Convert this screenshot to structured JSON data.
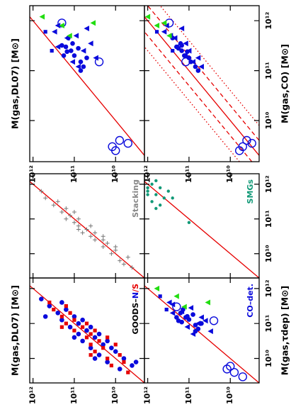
{
  "chart_data": [
    {
      "type": "scatter",
      "xscale": "log",
      "yscale": "log",
      "xlim": [
        1500000000.0,
        2000000000000.0
      ],
      "ylim": [
        2000000000.0,
        1200000000000.0
      ],
      "xticks": [
        10000000000.0,
        100000000000.0,
        1000000000000.0
      ],
      "yticks": [
        {
          "value": 10000000000.0,
          "label": "10¹⁰"
        },
        {
          "value": 100000000000.0,
          "label": "10¹¹"
        },
        {
          "value": 1000000000000.0,
          "label": "10¹²"
        }
      ],
      "ylabel": "M(gas,DL07) [M⊙]",
      "reference_lines": [
        {
          "factor": 1,
          "style": "solid",
          "color": "#e60000"
        }
      ],
      "series": [
        {
          "marker": "circle",
          "color": "#0a0adc",
          "x": [
            200000000000.0,
            250000000000.0,
            150000000000.0,
            300000000000.0,
            350000000000.0,
            200000000000.0,
            280000000000.0,
            120000000000.0,
            450000000000.0,
            180000000000.0,
            100000000000.0,
            320000000000.0,
            240000000000.0
          ],
          "y": [
            100000000000.0,
            120000000000.0,
            70000000000.0,
            160000000000.0,
            110000000000.0,
            180000000000.0,
            80000000000.0,
            60000000000.0,
            140000000000.0,
            50000000000.0,
            70000000000.0,
            200000000000.0,
            150000000000.0
          ]
        },
        {
          "marker": "triangle",
          "color": "#0a0adc",
          "x": [
            300000000000.0,
            600000000000.0,
            450000000000.0,
            250000000000.0,
            150000000000.0,
            800000000000.0,
            700000000000.0,
            180000000000.0,
            350000000000.0,
            120000000000.0,
            500000000000.0
          ],
          "y": [
            250000000000.0,
            300000000000.0,
            150000000000.0,
            60000000000.0,
            110000000000.0,
            250000000000.0,
            50000000000.0,
            30000000000.0,
            40000000000.0,
            80000000000.0,
            90000000000.0
          ]
        },
        {
          "marker": "circle-open",
          "color": "#0a0adc",
          "x": [
            900000000000.0,
            150000000000.0,
            3000000000.0,
            4000000000.0,
            2500000000.0,
            3500000000.0
          ],
          "y": [
            200000000000.0,
            25000000000.0,
            12000000000.0,
            8000000000.0,
            10000000000.0,
            5000000000.0
          ]
        },
        {
          "marker": "triangle",
          "color": "#22dd11",
          "x": [
            1200000000000.0,
            800000000000.0,
            500000000000.0,
            900000000000.0
          ],
          "y": [
            600000000000.0,
            200000000000.0,
            130000000000.0,
            35000000000.0
          ]
        },
        {
          "marker": "square",
          "color": "#0a0adc",
          "x": [
            600000000000.0,
            250000000000.0
          ],
          "y": [
            500000000000.0,
            350000000000.0
          ]
        }
      ]
    },
    {
      "type": "scatter",
      "xscale": "log",
      "yscale": "log",
      "xlim": [
        1500000000.0,
        2000000000000.0
      ],
      "ylim": [
        2000000000.0,
        1200000000000.0
      ],
      "xticks": [
        {
          "value": 10000000000.0,
          "label": "10¹⁰"
        },
        {
          "value": 100000000000.0,
          "label": "10¹¹"
        },
        {
          "value": 1000000000000.0,
          "label": "10¹²"
        }
      ],
      "yticks": [
        {
          "value": 10000000000.0,
          "label": "10¹⁰"
        },
        {
          "value": 100000000000.0,
          "label": "10¹¹"
        },
        {
          "value": 1000000000000.0,
          "label": "10¹²"
        }
      ],
      "xlabel": "M(gas,CO) [M⊙]",
      "reference_lines": [
        {
          "factor": 1,
          "style": "solid",
          "color": "#e60000"
        },
        {
          "factor": 2,
          "style": "dashed",
          "color": "#e60000"
        },
        {
          "factor": 0.5,
          "style": "dashed",
          "color": "#e60000"
        },
        {
          "factor": 4,
          "style": "dotted",
          "color": "#e60000"
        },
        {
          "factor": 0.25,
          "style": "dotted",
          "color": "#e60000"
        }
      ],
      "series": [
        {
          "marker": "circle",
          "color": "#0a0adc",
          "x": [
            200000000000.0,
            250000000000.0,
            150000000000.0,
            300000000000.0,
            350000000000.0,
            200000000000.0,
            280000000000.0,
            120000000000.0,
            450000000000.0,
            180000000000.0,
            100000000000.0,
            320000000000.0,
            240000000000.0
          ],
          "y": [
            130000000000.0,
            150000000000.0,
            90000000000.0,
            200000000000.0,
            160000000000.0,
            120000000000.0,
            180000000000.0,
            70000000000.0,
            250000000000.0,
            100000000000.0,
            60000000000.0,
            150000000000.0,
            110000000000.0
          ]
        },
        {
          "marker": "triangle",
          "color": "#0a0adc",
          "x": [
            300000000000.0,
            600000000000.0,
            450000000000.0,
            250000000000.0,
            150000000000.0,
            800000000000.0,
            700000000000.0,
            180000000000.0,
            350000000000.0,
            120000000000.0,
            500000000000.0
          ],
          "y": [
            200000000000.0,
            400000000000.0,
            220000000000.0,
            100000000000.0,
            80000000000.0,
            350000000000.0,
            150000000000.0,
            60000000000.0,
            120000000000.0,
            50000000000.0,
            280000000000.0
          ]
        },
        {
          "marker": "circle-open",
          "color": "#0a0adc",
          "x": [
            900000000000.0,
            150000000000.0,
            3000000000.0,
            4000000000.0,
            2500000000.0,
            3500000000.0
          ],
          "y": [
            300000000000.0,
            120000000000.0,
            5000000000.0,
            4000000000.0,
            6000000000.0,
            3000000000.0
          ]
        },
        {
          "marker": "triangle",
          "color": "#22dd11",
          "x": [
            1200000000000.0,
            800000000000.0,
            500000000000.0,
            900000000000.0
          ],
          "y": [
            1000000000000.0,
            600000000000.0,
            300000000000.0,
            400000000000.0
          ]
        },
        {
          "marker": "square",
          "color": "#0a0adc",
          "x": [
            600000000000.0,
            250000000000.0
          ],
          "y": [
            600000000000.0,
            250000000000.0
          ]
        }
      ]
    },
    {
      "type": "scatter",
      "xscale": "log",
      "yscale": "log",
      "xlim": [
        2000000000.0,
        2000000000000.0
      ],
      "ylim": [
        2000000000.0,
        1200000000000.0
      ],
      "xticks": [
        10000000000.0,
        100000000000.0,
        1000000000000.0
      ],
      "yticks": [
        10000000000.0,
        100000000000.0,
        1000000000000.0
      ],
      "annotation": [
        {
          "text": "Stacking",
          "color": "#888888"
        }
      ],
      "reference_lines": [
        {
          "factor": 1,
          "style": "solid",
          "color": "#e60000"
        }
      ],
      "series": [
        {
          "marker": "plus",
          "color": "#777777",
          "x": [
            4000000000.0,
            6300000000.0,
            7900000000.0,
            10000000000.0,
            12600000000.0,
            15800000000.0,
            20000000000.0,
            25000000000.0,
            25000000000.0,
            31600000000.0,
            40000000000.0,
            40000000000.0,
            50000000000.0,
            63000000000.0,
            63000000000.0,
            79000000000.0,
            100000000000.0,
            100000000000.0,
            126000000000.0,
            158000000000.0,
            200000000000.0,
            250000000000.0,
            316000000000.0,
            400000000000.0,
            630000000000.0,
            15800000000.0,
            31600000000.0,
            50000000000.0,
            158000000000.0,
            5000000000.0
          ],
          "y": [
            4000000000.0,
            7900000000.0,
            5000000000.0,
            12600000000.0,
            10000000000.0,
            20000000000.0,
            15800000000.0,
            31600000000.0,
            20000000000.0,
            40000000000.0,
            31600000000.0,
            63000000000.0,
            50000000000.0,
            79000000000.0,
            40000000000.0,
            100000000000.0,
            79000000000.0,
            158000000000.0,
            126000000000.0,
            200000000000.0,
            158000000000.0,
            316000000000.0,
            250000000000.0,
            500000000000.0,
            630000000000.0,
            10000000000.0,
            20000000000.0,
            79000000000.0,
            100000000000.0,
            6300000000.0
          ]
        }
      ]
    },
    {
      "type": "scatter",
      "xscale": "log",
      "yscale": "log",
      "xlim": [
        2000000000.0,
        2000000000000.0
      ],
      "ylim": [
        2000000000.0,
        1200000000000.0
      ],
      "xticks": [
        {
          "value": 10000000000.0,
          "label": "10¹⁰"
        },
        {
          "value": 100000000000.0,
          "label": "10¹¹"
        },
        {
          "value": 1000000000000.0,
          "label": "10¹²"
        }
      ],
      "yticks": [
        10000000000.0,
        100000000000.0,
        1000000000000.0
      ],
      "annotation": [
        {
          "text": "SMGs",
          "color": "#119977"
        }
      ],
      "reference_lines": [
        {
          "factor": 1,
          "style": "solid",
          "color": "#e60000"
        }
      ],
      "series": [
        {
          "marker": "dot",
          "color": "#119977",
          "x": [
            1000000000000.0,
            790000000000.0,
            630000000000.0,
            500000000000.0,
            400000000000.0,
            790000000000.0,
            316000000000.0,
            630000000000.0,
            250000000000.0,
            500000000000.0,
            1260000000000.0,
            200000000000.0,
            79000000000.0,
            400000000000.0
          ],
          "y": [
            790000000000.0,
            500000000000.0,
            1000000000000.0,
            630000000000.0,
            400000000000.0,
            1000000000000.0,
            790000000000.0,
            316000000000.0,
            500000000000.0,
            1000000000000.0,
            630000000000.0,
            630000000000.0,
            100000000000.0,
            250000000000.0
          ]
        }
      ]
    },
    {
      "type": "scatter",
      "xscale": "log",
      "yscale": "log",
      "xlim": [
        2000000000.0,
        2000000000000.0
      ],
      "ylim": [
        2000000000.0,
        1200000000000.0
      ],
      "xticks": [
        10000000000.0,
        100000000000.0,
        1000000000000.0
      ],
      "yticks": [
        {
          "value": 10000000000.0,
          "label": "10¹⁰"
        },
        {
          "value": 100000000000.0,
          "label": "10¹¹"
        },
        {
          "value": 1000000000000.0,
          "label": "10¹²"
        }
      ],
      "ylabel": "M(gas,DL07) [M⊙]",
      "annotation": [
        {
          "text": "GOODS–",
          "color": "#000000"
        },
        {
          "text": "N",
          "color": "#0a0adc"
        },
        {
          "text": "/S",
          "color": "#e60000"
        }
      ],
      "reference_lines": [
        {
          "factor": 1,
          "style": "solid",
          "color": "#e60000"
        }
      ],
      "series": [
        {
          "marker": "circle",
          "color": "#0a0adc",
          "x": [
            5000000000.0,
            6300000000.0,
            7900000000.0,
            10000000000.0,
            12600000000.0,
            15800000000.0,
            20000000000.0,
            20000000000.0,
            25000000000.0,
            31600000000.0,
            31600000000.0,
            40000000000.0,
            50000000000.0,
            50000000000.0,
            63000000000.0,
            79000000000.0,
            79000000000.0,
            100000000000.0,
            126000000000.0,
            126000000000.0,
            158000000000.0,
            200000000000.0,
            250000000000.0,
            316000000000.0,
            400000000000.0,
            500000000000.0,
            10000000000.0,
            40000000000.0,
            158000000000.0,
            7900000000.0
          ],
          "y": [
            7900000000.0,
            4000000000.0,
            15800000000.0,
            6300000000.0,
            25000000000.0,
            10000000000.0,
            40000000000.0,
            12600000000.0,
            20000000000.0,
            63000000000.0,
            15800000000.0,
            31600000000.0,
            79000000000.0,
            25000000000.0,
            50000000000.0,
            126000000000.0,
            40000000000.0,
            79000000000.0,
            200000000000.0,
            63000000000.0,
            100000000000.0,
            250000000000.0,
            158000000000.0,
            400000000000.0,
            200000000000.0,
            630000000000.0,
            31600000000.0,
            100000000000.0,
            500000000000.0,
            3200000000.0
          ]
        },
        {
          "marker": "square",
          "color": "#e60000",
          "x": [
            4000000000.0,
            6300000000.0,
            7900000000.0,
            10000000000.0,
            12600000000.0,
            15800000000.0,
            20000000000.0,
            25000000000.0,
            25000000000.0,
            31600000000.0,
            40000000000.0,
            40000000000.0,
            50000000000.0,
            63000000000.0,
            63000000000.0,
            79000000000.0,
            100000000000.0,
            100000000000.0,
            126000000000.0,
            158000000000.0,
            200000000000.0,
            250000000000.0,
            316000000000.0,
            12600000000.0,
            79000000000.0,
            400000000000.0
          ],
          "y": [
            5000000000.0,
            12600000000.0,
            6300000000.0,
            15800000000.0,
            7900000000.0,
            31600000000.0,
            20000000000.0,
            10000000000.0,
            40000000000.0,
            25000000000.0,
            50000000000.0,
            15800000000.0,
            40000000000.0,
            100000000000.0,
            31600000000.0,
            63000000000.0,
            158000000000.0,
            50000000000.0,
            100000000000.0,
            200000000000.0,
            126000000000.0,
            316000000000.0,
            158000000000.0,
            40000000000.0,
            200000000000.0,
            400000000000.0
          ]
        }
      ]
    },
    {
      "type": "scatter",
      "xscale": "log",
      "yscale": "log",
      "xlim": [
        2000000000.0,
        2000000000000.0
      ],
      "ylim": [
        2000000000.0,
        1200000000000.0
      ],
      "xticks": [
        {
          "value": 10000000000.0,
          "label": "10¹⁰"
        },
        {
          "value": 100000000000.0,
          "label": "10¹¹"
        },
        {
          "value": 1000000000000.0,
          "label": "10¹²"
        }
      ],
      "yticks": [
        {
          "value": 10000000000.0,
          "label": "10¹⁰"
        },
        {
          "value": 100000000000.0,
          "label": "10¹¹"
        },
        {
          "value": 1000000000000.0,
          "label": "10¹²"
        }
      ],
      "xlabel": "M(gas,τdep) [M⊙]",
      "annotation": [
        {
          "text": "CO–det.",
          "color": "#0a0adc"
        }
      ],
      "reference_lines": [
        {
          "factor": 1,
          "style": "solid",
          "color": "#e60000"
        }
      ],
      "series": [
        {
          "marker": "circle",
          "color": "#0a0adc",
          "x": [
            130000000000.0,
            150000000000.0,
            90000000000.0,
            200000000000.0,
            160000000000.0,
            120000000000.0,
            180000000000.0,
            70000000000.0,
            250000000000.0,
            100000000000.0,
            60000000000.0,
            150000000000.0,
            110000000000.0
          ],
          "y": [
            100000000000.0,
            120000000000.0,
            70000000000.0,
            160000000000.0,
            110000000000.0,
            180000000000.0,
            80000000000.0,
            60000000000.0,
            140000000000.0,
            50000000000.0,
            70000000000.0,
            200000000000.0,
            150000000000.0
          ]
        },
        {
          "marker": "triangle",
          "color": "#0a0adc",
          "x": [
            200000000000.0,
            400000000000.0,
            220000000000.0,
            100000000000.0,
            80000000000.0,
            350000000000.0,
            150000000000.0,
            60000000000.0,
            120000000000.0,
            50000000000.0,
            280000000000.0
          ],
          "y": [
            250000000000.0,
            300000000000.0,
            150000000000.0,
            60000000000.0,
            110000000000.0,
            250000000000.0,
            50000000000.0,
            30000000000.0,
            40000000000.0,
            80000000000.0,
            90000000000.0
          ]
        },
        {
          "marker": "circle-open",
          "color": "#0a0adc",
          "x": [
            300000000000.0,
            120000000000.0,
            5000000000.0,
            4000000000.0,
            6000000000.0,
            3000000000.0
          ],
          "y": [
            200000000000.0,
            25000000000.0,
            12000000000.0,
            8000000000.0,
            10000000000.0,
            5000000000.0
          ]
        },
        {
          "marker": "triangle",
          "color": "#22dd11",
          "x": [
            1000000000000.0,
            600000000000.0,
            300000000000.0,
            400000000000.0
          ],
          "y": [
            600000000000.0,
            200000000000.0,
            130000000000.0,
            35000000000.0
          ]
        },
        {
          "marker": "square",
          "color": "#0a0adc",
          "x": [
            600000000000.0,
            250000000000.0
          ],
          "y": [
            500000000000.0,
            350000000000.0
          ]
        }
      ]
    }
  ]
}
